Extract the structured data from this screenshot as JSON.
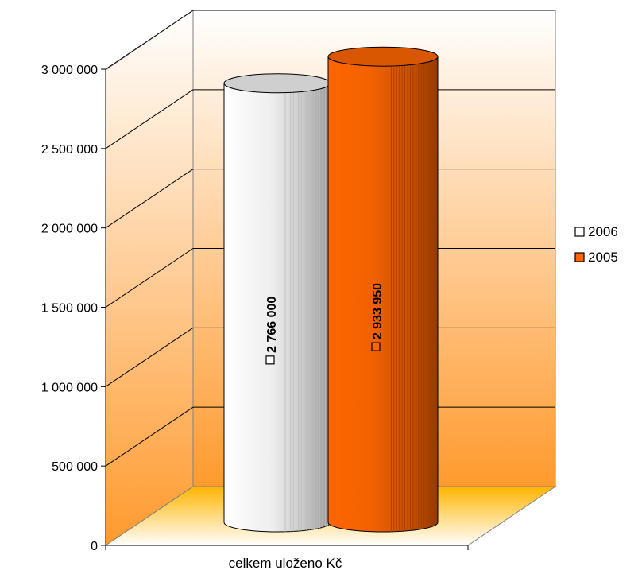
{
  "chart_data": {
    "type": "bar",
    "style": "3d-cylinder",
    "categories": [
      "celkem uloženo Kč"
    ],
    "series": [
      {
        "name": "2006",
        "values": [
          2766000
        ],
        "value_labels": [
          "2 766 000"
        ],
        "color": "#ffffff"
      },
      {
        "name": "2005",
        "values": [
          2933950
        ],
        "value_labels": [
          "2 933 950"
        ],
        "color": "#ff6600"
      }
    ],
    "y_ticks": [
      0,
      500000,
      1000000,
      1500000,
      2000000,
      2500000,
      3000000
    ],
    "y_tick_labels": [
      "0",
      "500 000",
      "1 000 000",
      "1 500 000",
      "2 000 000",
      "2 500 000",
      "3 000 000"
    ],
    "ylim": [
      0,
      3000000
    ],
    "grid": true,
    "legend_position": "right",
    "colors": {
      "wall_top": "#ffffff",
      "wall_bottom": "#ff9a2e",
      "floor_back": "#ffb400",
      "floor_front": "#ffffff",
      "outline": "#000000"
    }
  }
}
